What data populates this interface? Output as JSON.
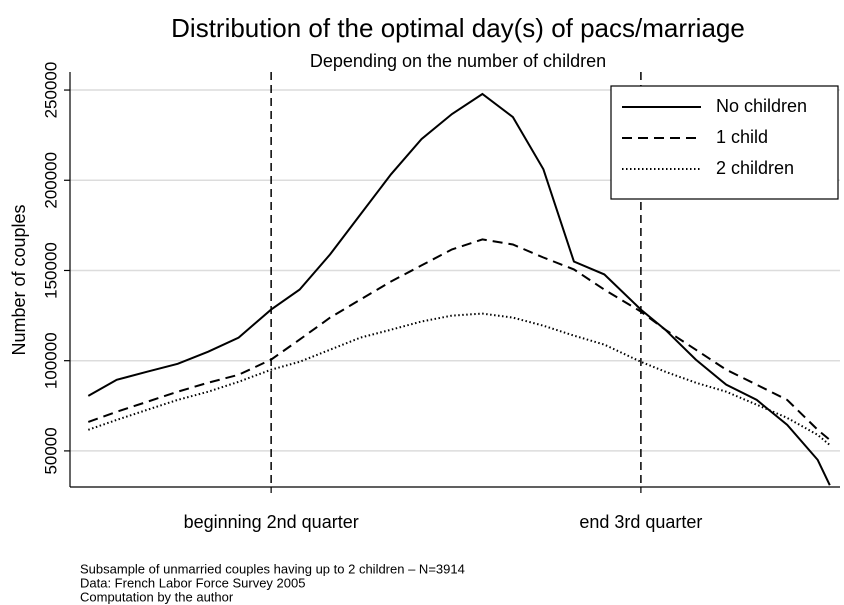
{
  "chart_data": {
    "type": "line",
    "title": "Distribution of the optimal day(s) of pacs/marriage",
    "subtitle": "Depending on the number of children",
    "ylabel": "Number of couples",
    "x": [
      1,
      15,
      30,
      45,
      60,
      75,
      91,
      105,
      120,
      135,
      150,
      165,
      180,
      195,
      210,
      225,
      240,
      255,
      273,
      285,
      300,
      315,
      330,
      345,
      360,
      366
    ],
    "series": [
      {
        "name": "No children",
        "color": "#000000",
        "style": "solid",
        "values": [
          80500,
          89400,
          93900,
          98300,
          105000,
          112800,
          128300,
          139400,
          158900,
          181100,
          203300,
          222800,
          236700,
          247800,
          235000,
          206100,
          155000,
          147800,
          128300,
          117200,
          100600,
          86700,
          78300,
          64400,
          45000,
          31000
        ]
      },
      {
        "name": "1 child",
        "color": "#000000",
        "style": "dashed",
        "values": [
          66100,
          71700,
          77200,
          82800,
          87800,
          92200,
          100600,
          111700,
          123900,
          133900,
          143900,
          152800,
          161700,
          167200,
          164400,
          157200,
          150600,
          139400,
          127200,
          117200,
          106100,
          95000,
          86700,
          78300,
          61700,
          56100
        ]
      },
      {
        "name": "2 children",
        "color": "#000000",
        "style": "dotted",
        "values": [
          61700,
          67200,
          72800,
          78300,
          82800,
          88300,
          95000,
          99400,
          106100,
          112800,
          117200,
          121700,
          125000,
          126100,
          123900,
          119400,
          113900,
          108900,
          99400,
          93900,
          87800,
          82800,
          75600,
          68300,
          58900,
          53300
        ]
      }
    ],
    "xlim": [
      -8,
      371
    ],
    "xticks": [
      {
        "value": 91,
        "label": "beginning 2nd quarter"
      },
      {
        "value": 273,
        "label": "end 3rd quarter"
      }
    ],
    "ylim": [
      30000,
      260000
    ],
    "yticks": [
      50000,
      100000,
      150000,
      200000,
      250000
    ],
    "grid": true,
    "legend": "top-right",
    "notes": [
      "Subsample of unmarried couples having up to 2 children – N=3914",
      "Data: French Labor Force Survey 2005",
      "Computation by the author"
    ]
  }
}
